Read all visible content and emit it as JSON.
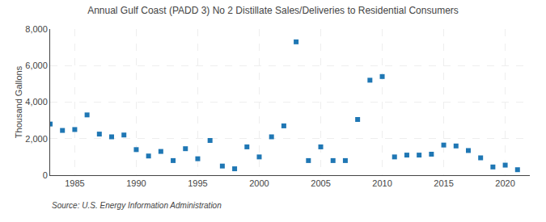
{
  "chart_data": {
    "type": "scatter",
    "title": "Annual Gulf Coast (PADD 3) No 2 Distillate Sales/Deliveries to Residential Consumers",
    "ylabel": "Thousand Gallons",
    "annotations": [
      "Source: U.S. Energy Information Administration"
    ],
    "marker": "square",
    "grid": true,
    "x": [
      1983,
      1984,
      1985,
      1986,
      1987,
      1988,
      1989,
      1990,
      1991,
      1992,
      1993,
      1994,
      1995,
      1996,
      1997,
      1998,
      1999,
      2000,
      2001,
      2002,
      2003,
      2004,
      2005,
      2006,
      2007,
      2008,
      2009,
      2010,
      2011,
      2012,
      2013,
      2014,
      2015,
      2016,
      2017,
      2018,
      2019,
      2020,
      2021
    ],
    "values": [
      2800,
      2450,
      2500,
      3300,
      2250,
      2100,
      2200,
      1400,
      1050,
      1300,
      800,
      1450,
      900,
      1900,
      500,
      350,
      1550,
      1000,
      2100,
      2700,
      7300,
      800,
      1550,
      800,
      800,
      3050,
      5200,
      5400,
      1000,
      1100,
      1100,
      1150,
      1650,
      1600,
      1350,
      950,
      450,
      550,
      300
    ],
    "xlim": [
      1983,
      2022
    ],
    "xticks": [
      1985,
      1990,
      1995,
      2000,
      2005,
      2010,
      2015,
      2020
    ],
    "ylim": [
      0,
      8000
    ],
    "yticks": [
      0,
      {
        "value": 2000,
        "label": "2,000"
      },
      {
        "value": 4000,
        "label": "4,000"
      },
      {
        "value": 6000,
        "label": "6,000"
      },
      {
        "value": 8000,
        "label": "8,000"
      }
    ]
  }
}
